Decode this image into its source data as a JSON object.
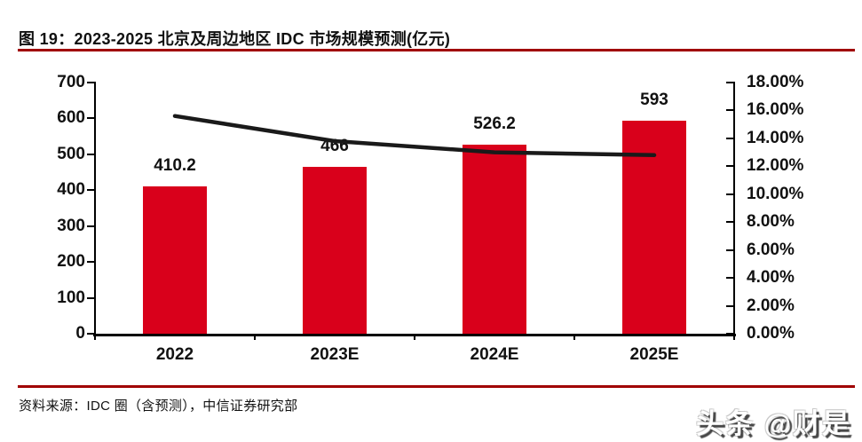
{
  "figure": {
    "title": "图 19：2023-2025 北京及周边地区 IDC 市场规模预测(亿元)",
    "source": "资料来源：IDC 圈（含预测），中信证券研究部",
    "watermark": "头条 @财是"
  },
  "colors": {
    "bar": "#d9001b",
    "line": "#1a1a1a",
    "rule": "#a00000",
    "axis": "#000000",
    "text": "#111111"
  },
  "chart_data": {
    "type": "bar",
    "title": "2023-2025 北京及周边地区 IDC 市场规模预测(亿元)",
    "categories": [
      "2022",
      "2023E",
      "2024E",
      "2025E"
    ],
    "series": [
      {
        "name": "bar-series-market-size",
        "type": "bar",
        "axis": "left",
        "values": [
          410.2,
          466,
          526.2,
          593
        ],
        "labels": [
          "410.2",
          "466",
          "526.2",
          "593"
        ]
      },
      {
        "name": "line-series-growth-rate",
        "type": "line",
        "axis": "right",
        "values_pct": [
          15.6,
          13.8,
          13.0,
          12.8
        ]
      }
    ],
    "left_axis": {
      "min": 0,
      "max": 700,
      "step": 100,
      "ticks": [
        "700",
        "600",
        "500",
        "400",
        "300",
        "200",
        "100",
        "0"
      ]
    },
    "right_axis": {
      "min": 0,
      "max": 18,
      "step": 2,
      "ticks": [
        "18.00%",
        "16.00%",
        "14.00%",
        "12.00%",
        "10.00%",
        "8.00%",
        "6.00%",
        "4.00%",
        "2.00%",
        "0.00%"
      ]
    },
    "grid": false,
    "legend": "none"
  }
}
